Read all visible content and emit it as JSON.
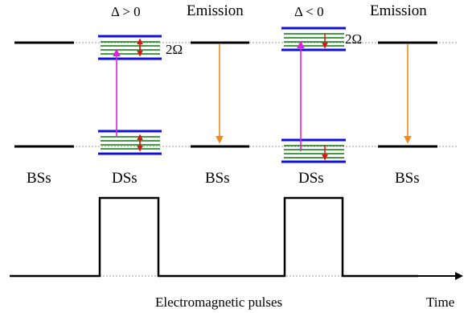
{
  "labels": {
    "delta_pos": "Δ > 0",
    "delta_neg": "Δ < 0",
    "emission_1": "Emission",
    "emission_2": "Emission",
    "two_omega_1": "2Ω",
    "two_omega_2": "2Ω",
    "bss_1": "BSs",
    "dss_1": "DSs",
    "bss_2": "BSs",
    "dss_2": "DSs",
    "bss_3": "BSs",
    "pulses": "Electromagnetic pulses",
    "time": "Time"
  },
  "colors": {
    "level": "#000000",
    "dashed": "#777777",
    "dressed_outer": "#1010d8",
    "dressed_inner": "#0a7a0a",
    "pump": "#e020e0",
    "emission": "#f08a1c",
    "rabi": "#e01010"
  }
}
